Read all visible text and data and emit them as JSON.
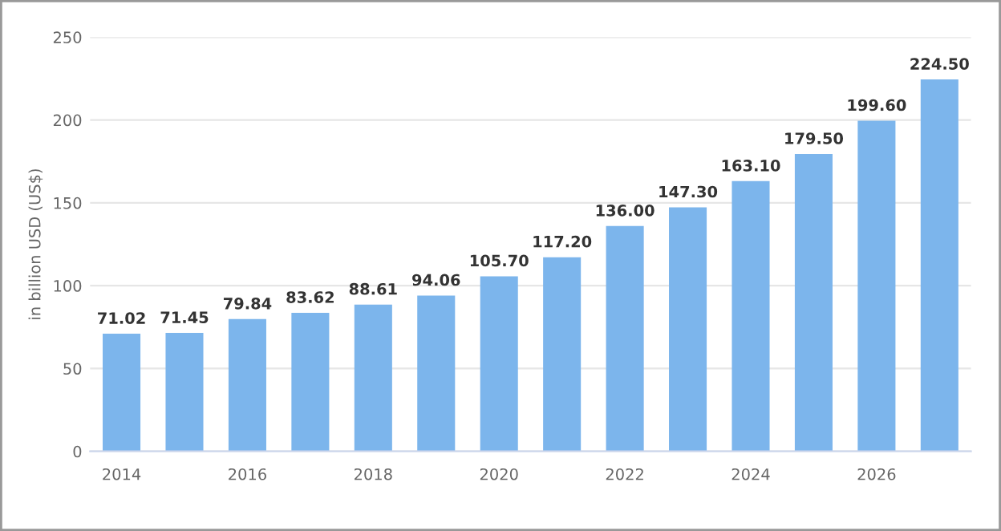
{
  "chart_data": {
    "type": "bar",
    "ylabel": "in billion USD (US$)",
    "categories": [
      "2014",
      null,
      "2016",
      null,
      "2018",
      null,
      "2020",
      null,
      "2022",
      null,
      "2024",
      null,
      "2026",
      null
    ],
    "values": [
      71.02,
      71.45,
      79.84,
      83.62,
      88.61,
      94.06,
      105.7,
      117.2,
      136.0,
      147.3,
      163.1,
      179.5,
      199.6,
      224.5
    ],
    "value_labels": [
      "71.02",
      "71.45",
      "79.84",
      "83.62",
      "88.61",
      "94.06",
      "105.70",
      "117.20",
      "136.00",
      "147.30",
      "163.10",
      "179.50",
      "199.60",
      "224.50"
    ],
    "color": "#7cb5ec",
    "ylim": [
      0,
      250
    ],
    "yticks": [
      0,
      50,
      100,
      150,
      200,
      250
    ],
    "grid": "y",
    "legend": false
  }
}
